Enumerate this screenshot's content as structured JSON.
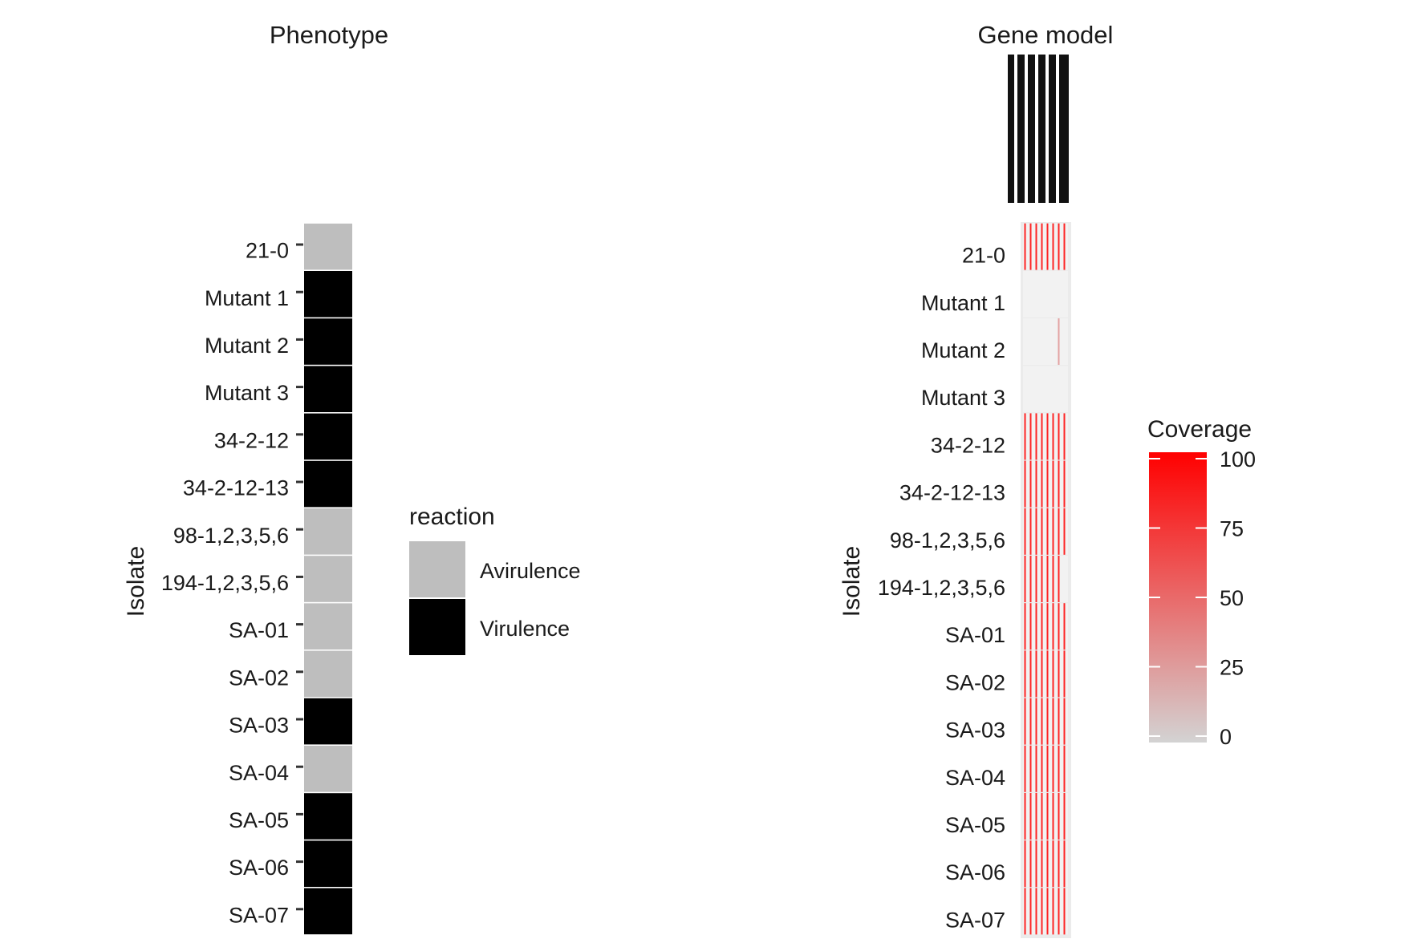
{
  "chart_data": [
    {
      "type": "heatmap",
      "title": "Phenotype",
      "ylabel": "Isolate",
      "categories": [
        "21-0",
        "Mutant 1",
        "Mutant 2",
        "Mutant 3",
        "34-2-12",
        "34-2-12-13",
        "98-1,2,3,5,6",
        "194-1,2,3,5,6",
        "SA-01",
        "SA-02",
        "SA-03",
        "SA-04",
        "SA-05",
        "SA-06",
        "SA-07"
      ],
      "values": [
        "Avirulence",
        "Virulence",
        "Virulence",
        "Virulence",
        "Virulence",
        "Virulence",
        "Avirulence",
        "Avirulence",
        "Avirulence",
        "Avirulence",
        "Virulence",
        "Avirulence",
        "Virulence",
        "Virulence",
        "Virulence"
      ],
      "legend": {
        "title": "reaction",
        "placement": "right",
        "items": [
          {
            "label": "Avirulence",
            "color": "#bebebe"
          },
          {
            "label": "Virulence",
            "color": "#000000"
          }
        ]
      },
      "grid": false
    },
    {
      "type": "heatmap",
      "title": "Gene model",
      "ylabel": "Isolate",
      "categories": [
        "21-0",
        "Mutant 1",
        "Mutant 2",
        "Mutant 3",
        "34-2-12",
        "34-2-12-13",
        "98-1,2,3,5,6",
        "194-1,2,3,5,6",
        "SA-01",
        "SA-02",
        "SA-03",
        "SA-04",
        "SA-05",
        "SA-06",
        "SA-07"
      ],
      "gene_columns": 8,
      "coverage": [
        [
          100,
          100,
          100,
          100,
          100,
          100,
          100,
          100
        ],
        [
          0,
          0,
          0,
          0,
          0,
          0,
          0,
          0
        ],
        [
          0,
          0,
          0,
          0,
          0,
          0,
          30,
          0
        ],
        [
          0,
          0,
          0,
          0,
          0,
          0,
          0,
          0
        ],
        [
          100,
          100,
          100,
          100,
          100,
          100,
          100,
          100
        ],
        [
          100,
          100,
          100,
          100,
          100,
          100,
          100,
          100
        ],
        [
          100,
          100,
          100,
          100,
          100,
          100,
          100,
          100
        ],
        [
          100,
          100,
          100,
          100,
          100,
          100,
          100,
          0
        ],
        [
          100,
          100,
          100,
          100,
          100,
          100,
          100,
          100
        ],
        [
          100,
          100,
          100,
          100,
          100,
          100,
          100,
          100
        ],
        [
          100,
          100,
          100,
          100,
          100,
          100,
          100,
          100
        ],
        [
          100,
          100,
          100,
          100,
          100,
          100,
          100,
          100
        ],
        [
          100,
          100,
          100,
          100,
          100,
          100,
          100,
          100
        ],
        [
          100,
          100,
          100,
          100,
          100,
          100,
          100,
          100
        ],
        [
          100,
          100,
          100,
          100,
          100,
          100,
          100,
          100
        ]
      ],
      "legend": {
        "title": "Coverage",
        "placement": "right",
        "range": [
          0,
          100
        ],
        "ticks": [
          0,
          25,
          50,
          75,
          100
        ],
        "low_color": "#d3d3d3",
        "high_color": "#ff0000"
      },
      "grid": false
    }
  ]
}
